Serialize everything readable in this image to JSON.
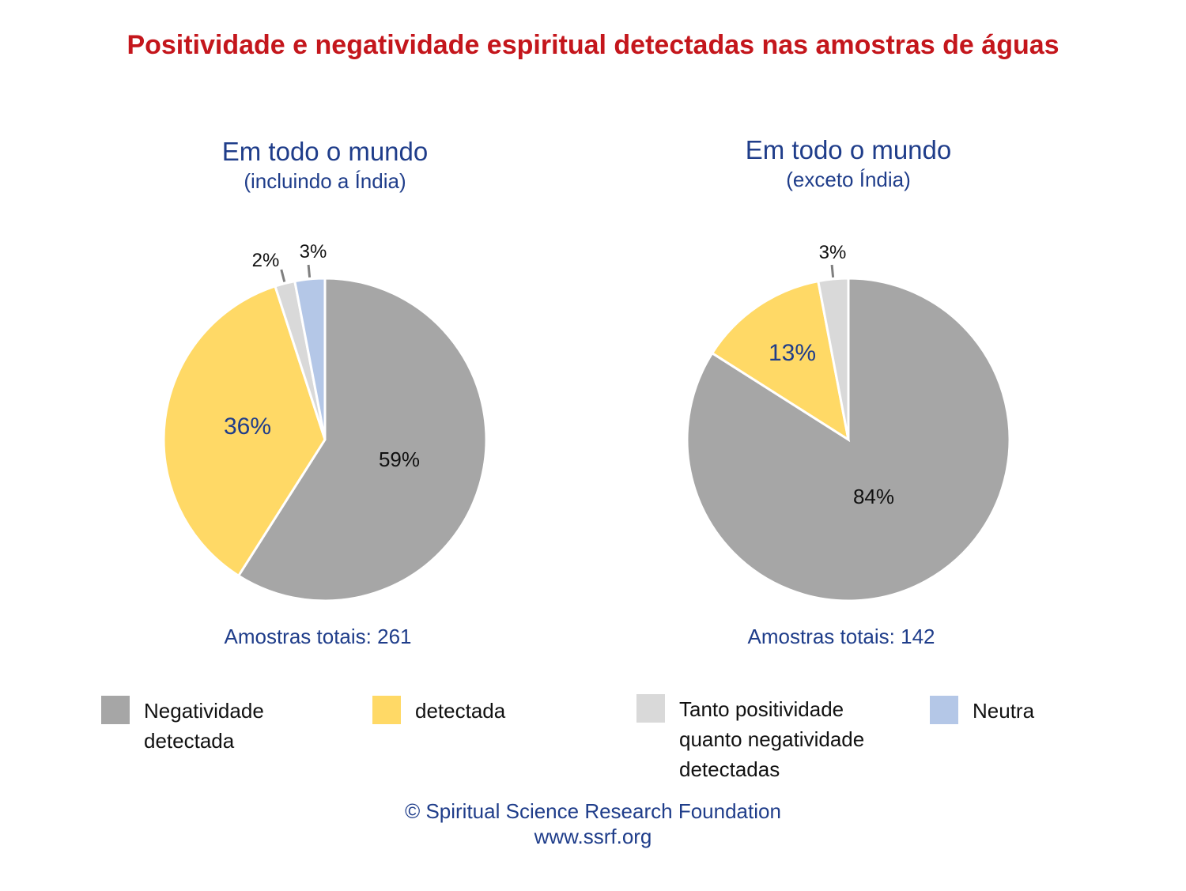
{
  "title": "Positividade e negatividade espiritual detectadas nas amostras de águas",
  "colors": {
    "title": "#c4161c",
    "accent_text": "#1f3d8a",
    "negative": "#a6a6a6",
    "positive": "#ffd966",
    "both": "#d9d9d9",
    "neutral": "#b4c7e7"
  },
  "chart_data": [
    {
      "type": "pie",
      "title": "Em todo o mundo",
      "subtitle": "(incluindo a Índia)",
      "total_label": "Amostras totais: 261",
      "slices": [
        {
          "key": "negative",
          "value": 59,
          "label": "59%"
        },
        {
          "key": "positive",
          "value": 36,
          "label": "36%"
        },
        {
          "key": "both",
          "value": 2,
          "label": "2%"
        },
        {
          "key": "neutral",
          "value": 3,
          "label": "3%"
        }
      ]
    },
    {
      "type": "pie",
      "title": "Em todo o mundo",
      "subtitle": "(exceto Índia)",
      "total_label": "Amostras totais: 142",
      "slices": [
        {
          "key": "negative",
          "value": 84,
          "label": "84%"
        },
        {
          "key": "positive",
          "value": 13,
          "label": "13%"
        },
        {
          "key": "both",
          "value": 3,
          "label": "3%"
        }
      ]
    }
  ],
  "legend": [
    {
      "key": "negative",
      "label": "Negatividade\ndetectada",
      "icon": "gray-square"
    },
    {
      "key": "positive",
      "label": "detectada",
      "icon": "yellow-square"
    },
    {
      "key": "both",
      "label": "Tanto positividade\nquanto negatividade\ndetectadas",
      "icon": "light-gray-square"
    },
    {
      "key": "neutral",
      "label": "Neutra",
      "icon": "blue-square"
    }
  ],
  "footer": {
    "copyright": "© Spiritual Science Research Foundation",
    "url": "www.ssrf.org"
  }
}
